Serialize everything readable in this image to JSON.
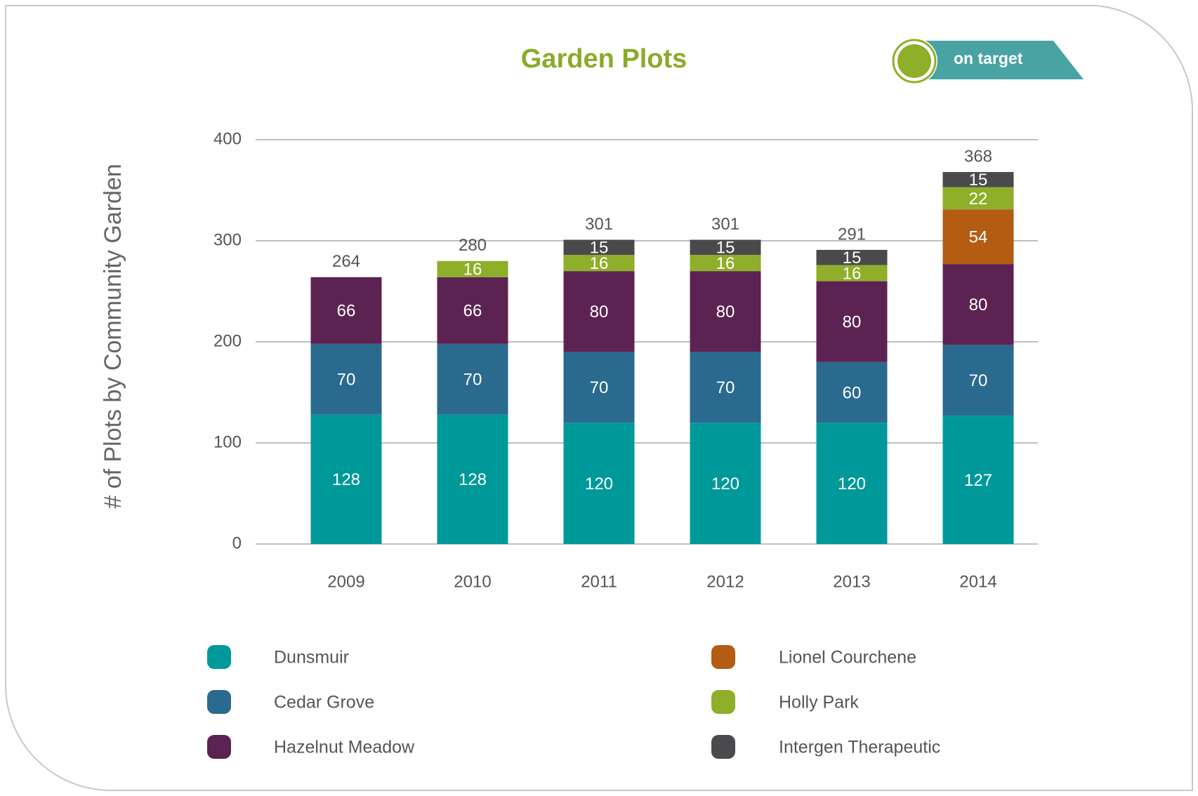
{
  "chart_data": {
    "type": "stacked_bar",
    "title": "Garden Plots",
    "badge": "on target",
    "y_label": "# of Plots by Community Garden",
    "categories": [
      "2009",
      "2010",
      "2011",
      "2012",
      "2013",
      "2014"
    ],
    "series": [
      {
        "name": "Dunsmuir",
        "color": "#00999a",
        "values": [
          128,
          128,
          120,
          120,
          120,
          127
        ]
      },
      {
        "name": "Cedar Grove",
        "color": "#2a6a8e",
        "values": [
          70,
          70,
          70,
          70,
          60,
          70
        ]
      },
      {
        "name": "Hazelnut Meadow",
        "color": "#5c2352",
        "values": [
          66,
          66,
          80,
          80,
          80,
          80
        ]
      },
      {
        "name": "Lionel Courchene",
        "color": "#b35c12",
        "values": [
          null,
          null,
          null,
          null,
          null,
          54
        ]
      },
      {
        "name": "Holly Park",
        "color": "#8fae2a",
        "values": [
          null,
          16,
          16,
          16,
          16,
          22
        ]
      },
      {
        "name": "Intergen Therapeutic",
        "color": "#4a4a4d",
        "values": [
          null,
          null,
          15,
          15,
          15,
          15
        ]
      }
    ],
    "totals": [
      264,
      280,
      301,
      301,
      291,
      368
    ],
    "ylim": [
      0,
      400
    ],
    "yticks": [
      0,
      100,
      200,
      300,
      400
    ],
    "grid": true
  }
}
